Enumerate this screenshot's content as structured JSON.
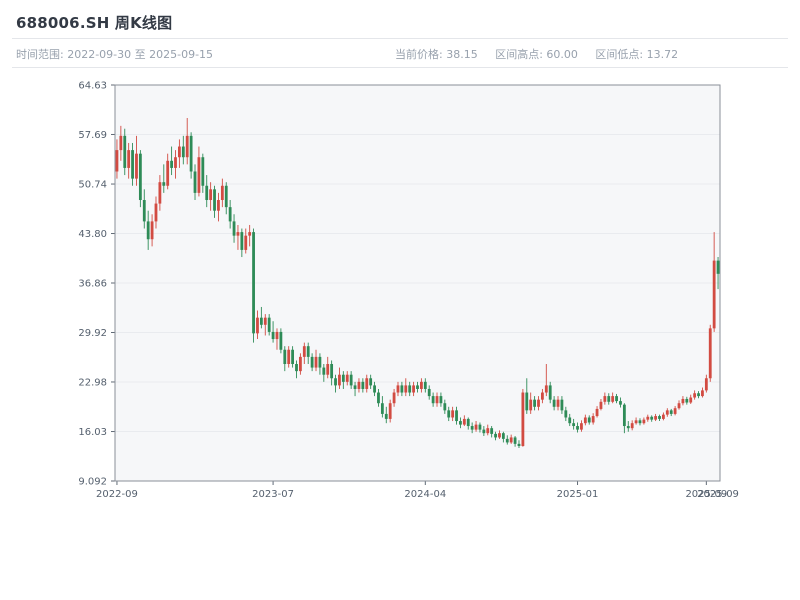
{
  "header": {
    "title": "688006.SH 周K线图",
    "time_range": "时间范围: 2022-09-30 至 2025-09-15",
    "current_price": "当前价格: 38.15",
    "range_high": "区间高点: 60.00",
    "range_low": "区间低点: 13.72"
  },
  "chart_data": {
    "type": "candlestick",
    "symbol": "688006.SH",
    "title": "688006.SH 周K线图",
    "frequency": "weekly",
    "current_price": 38.15,
    "range_high": 60.0,
    "range_low": 13.72,
    "y_min": 9.092,
    "y_max": 64.63,
    "y_ticks": [
      "64.63",
      "57.69",
      "50.74",
      "43.80",
      "36.86",
      "29.92",
      "22.98",
      "16.03",
      "9.092"
    ],
    "x_ticks": [
      {
        "label": "2022-09",
        "index": 0,
        "tick": true
      },
      {
        "label": "2023-07",
        "index": 40,
        "tick": true
      },
      {
        "label": "2024-04",
        "index": 79,
        "tick": true
      },
      {
        "label": "2025-01",
        "index": 118,
        "tick": true
      },
      {
        "label": "2025-09",
        "index": 151,
        "tick": true
      },
      {
        "label": "2025-09",
        "index": 154,
        "tick": false
      }
    ],
    "up_color": "#d24b42",
    "down_color": "#2e8b57",
    "plot_bg": "#f6f7f9",
    "grid": true,
    "legend": "none",
    "ohlc_order": [
      "date",
      "open",
      "high",
      "low",
      "close"
    ],
    "candles": [
      [
        "2022-09-30",
        52.5,
        57.0,
        51.5,
        55.5
      ],
      [
        "2022-10-07",
        55.5,
        58.9,
        54.0,
        57.5
      ],
      [
        "2022-10-14",
        57.5,
        58.5,
        52.0,
        53.0
      ],
      [
        "2022-10-21",
        53.0,
        56.5,
        51.5,
        55.5
      ],
      [
        "2022-10-28",
        55.5,
        56.5,
        50.5,
        51.5
      ],
      [
        "2022-11-04",
        51.5,
        57.5,
        50.5,
        55.0
      ],
      [
        "2022-11-11",
        55.0,
        55.5,
        47.5,
        48.5
      ],
      [
        "2022-11-18",
        48.5,
        50.0,
        44.5,
        45.5
      ],
      [
        "2022-11-25",
        45.5,
        47.0,
        41.5,
        43.0
      ],
      [
        "2022-12-02",
        43.0,
        46.5,
        42.0,
        45.5
      ],
      [
        "2022-12-09",
        45.5,
        49.0,
        44.5,
        48.0
      ],
      [
        "2022-12-16",
        48.0,
        52.0,
        47.0,
        51.0
      ],
      [
        "2022-12-23",
        51.0,
        53.5,
        49.5,
        50.5
      ],
      [
        "2022-12-30",
        50.5,
        55.0,
        50.0,
        54.0
      ],
      [
        "2023-01-06",
        54.0,
        56.0,
        52.0,
        53.0
      ],
      [
        "2023-01-13",
        53.0,
        55.5,
        51.5,
        54.5
      ],
      [
        "2023-01-20",
        54.5,
        57.0,
        53.0,
        56.0
      ],
      [
        "2023-01-27",
        56.0,
        57.5,
        53.5,
        54.5
      ],
      [
        "2023-02-03",
        54.5,
        60.0,
        53.5,
        57.5
      ],
      [
        "2023-02-10",
        57.5,
        58.0,
        51.5,
        52.5
      ],
      [
        "2023-02-17",
        52.5,
        53.5,
        48.5,
        49.5
      ],
      [
        "2023-02-24",
        49.5,
        56.0,
        49.0,
        54.5
      ],
      [
        "2023-03-03",
        54.5,
        55.0,
        49.5,
        50.5
      ],
      [
        "2023-03-10",
        50.5,
        52.0,
        47.5,
        48.5
      ],
      [
        "2023-03-17",
        48.5,
        51.0,
        47.0,
        50.0
      ],
      [
        "2023-03-24",
        50.0,
        50.5,
        46.0,
        47.0
      ],
      [
        "2023-03-31",
        47.0,
        49.5,
        45.5,
        48.5
      ],
      [
        "2023-04-07",
        48.5,
        51.5,
        47.5,
        50.5
      ],
      [
        "2023-04-14",
        50.5,
        51.0,
        46.5,
        47.5
      ],
      [
        "2023-04-21",
        47.5,
        48.5,
        44.5,
        45.5
      ],
      [
        "2023-04-28",
        45.5,
        46.5,
        42.5,
        43.5
      ],
      [
        "2023-05-05",
        43.5,
        45.0,
        41.5,
        44.0
      ],
      [
        "2023-05-12",
        44.0,
        44.5,
        40.5,
        41.5
      ],
      [
        "2023-05-19",
        41.5,
        44.5,
        41.0,
        43.5
      ],
      [
        "2023-05-26",
        43.5,
        45.0,
        42.0,
        44.0
      ],
      [
        "2023-06-02",
        44.0,
        44.5,
        28.5,
        29.8
      ],
      [
        "2023-06-09",
        29.8,
        33.0,
        29.0,
        32.0
      ],
      [
        "2023-06-16",
        32.0,
        33.5,
        30.5,
        31.0
      ],
      [
        "2023-06-23",
        31.0,
        32.5,
        29.5,
        32.0
      ],
      [
        "2023-06-30",
        32.0,
        32.5,
        29.5,
        30.0
      ],
      [
        "2023-07-07",
        30.0,
        31.5,
        28.5,
        29.0
      ],
      [
        "2023-07-14",
        29.0,
        30.5,
        27.5,
        30.0
      ],
      [
        "2023-07-21",
        30.0,
        30.5,
        27.0,
        27.5
      ],
      [
        "2023-07-28",
        27.5,
        28.0,
        24.5,
        25.5
      ],
      [
        "2023-08-04",
        25.5,
        28.0,
        25.0,
        27.5
      ],
      [
        "2023-08-11",
        27.5,
        28.0,
        25.0,
        25.5
      ],
      [
        "2023-08-18",
        25.5,
        26.0,
        23.5,
        24.5
      ],
      [
        "2023-08-25",
        24.5,
        27.0,
        24.0,
        26.5
      ],
      [
        "2023-09-01",
        26.5,
        28.5,
        25.5,
        28.0
      ],
      [
        "2023-09-08",
        28.0,
        28.5,
        25.5,
        26.5
      ],
      [
        "2023-09-15",
        26.5,
        27.0,
        24.5,
        25.0
      ],
      [
        "2023-09-22",
        25.0,
        27.5,
        24.5,
        26.5
      ],
      [
        "2023-09-29",
        26.5,
        27.0,
        24.0,
        25.0
      ],
      [
        "2023-10-06",
        25.0,
        25.5,
        23.0,
        24.0
      ],
      [
        "2023-10-13",
        24.0,
        26.5,
        23.5,
        25.5
      ],
      [
        "2023-10-20",
        25.5,
        26.0,
        22.5,
        23.5
      ],
      [
        "2023-10-27",
        23.5,
        24.0,
        21.5,
        22.5
      ],
      [
        "2023-11-03",
        22.5,
        25.0,
        22.0,
        24.0
      ],
      [
        "2023-11-10",
        24.0,
        24.5,
        22.0,
        23.0
      ],
      [
        "2023-11-17",
        23.0,
        24.5,
        22.5,
        24.0
      ],
      [
        "2023-11-24",
        24.0,
        24.5,
        22.0,
        22.5
      ],
      [
        "2023-12-01",
        22.5,
        23.0,
        21.0,
        22.0
      ],
      [
        "2023-12-08",
        22.0,
        23.5,
        21.5,
        23.0
      ],
      [
        "2023-12-15",
        23.0,
        23.5,
        21.5,
        22.0
      ],
      [
        "2023-12-22",
        22.0,
        24.0,
        21.5,
        23.5
      ],
      [
        "2023-12-29",
        23.5,
        24.0,
        22.0,
        22.5
      ],
      [
        "2024-01-05",
        22.5,
        23.0,
        21.0,
        21.5
      ],
      [
        "2024-01-12",
        21.5,
        22.0,
        19.5,
        20.0
      ],
      [
        "2024-01-19",
        20.0,
        21.0,
        18.0,
        18.5
      ],
      [
        "2024-01-26",
        18.5,
        19.5,
        17.2,
        17.8
      ],
      [
        "2024-02-02",
        17.8,
        20.5,
        17.3,
        20.0
      ],
      [
        "2024-02-09",
        20.0,
        22.0,
        19.5,
        21.5
      ],
      [
        "2024-02-16",
        21.5,
        23.0,
        21.0,
        22.5
      ],
      [
        "2024-02-23",
        22.5,
        23.0,
        21.0,
        21.5
      ],
      [
        "2024-03-01",
        21.5,
        23.5,
        21.0,
        22.5
      ],
      [
        "2024-03-08",
        22.5,
        23.0,
        21.0,
        21.5
      ],
      [
        "2024-03-15",
        21.5,
        23.0,
        21.0,
        22.5
      ],
      [
        "2024-03-22",
        22.5,
        23.0,
        21.5,
        22.0
      ],
      [
        "2024-03-29",
        22.0,
        23.5,
        21.5,
        23.0
      ],
      [
        "2024-04-05",
        23.0,
        23.5,
        21.5,
        22.0
      ],
      [
        "2024-04-12",
        22.0,
        22.5,
        20.5,
        21.0
      ],
      [
        "2024-04-19",
        21.0,
        21.5,
        19.5,
        20.0
      ],
      [
        "2024-04-26",
        20.0,
        21.5,
        19.5,
        21.0
      ],
      [
        "2024-05-03",
        21.0,
        21.5,
        19.5,
        20.0
      ],
      [
        "2024-05-10",
        20.0,
        20.5,
        18.5,
        19.0
      ],
      [
        "2024-05-17",
        19.0,
        19.5,
        17.5,
        18.0
      ],
      [
        "2024-05-24",
        18.0,
        19.5,
        17.5,
        19.0
      ],
      [
        "2024-05-31",
        19.0,
        19.5,
        17.0,
        17.5
      ],
      [
        "2024-06-07",
        17.5,
        18.0,
        16.5,
        17.0
      ],
      [
        "2024-06-14",
        17.0,
        18.3,
        16.8,
        17.8
      ],
      [
        "2024-06-21",
        17.8,
        18.0,
        16.3,
        16.8
      ],
      [
        "2024-06-28",
        16.8,
        17.3,
        15.8,
        16.3
      ],
      [
        "2024-07-05",
        16.3,
        17.5,
        16.0,
        17.0
      ],
      [
        "2024-07-12",
        17.0,
        17.3,
        15.9,
        16.3
      ],
      [
        "2024-07-19",
        16.3,
        16.8,
        15.4,
        15.8
      ],
      [
        "2024-07-26",
        15.8,
        17.0,
        15.5,
        16.5
      ],
      [
        "2024-08-02",
        16.5,
        16.8,
        15.2,
        15.7
      ],
      [
        "2024-08-09",
        15.7,
        16.0,
        14.8,
        15.2
      ],
      [
        "2024-08-16",
        15.2,
        16.2,
        15.0,
        15.8
      ],
      [
        "2024-08-23",
        15.8,
        16.0,
        14.5,
        15.0
      ],
      [
        "2024-08-30",
        15.0,
        15.5,
        14.2,
        14.5
      ],
      [
        "2024-09-06",
        14.5,
        15.6,
        14.3,
        15.2
      ],
      [
        "2024-09-13",
        15.2,
        15.4,
        13.9,
        14.3
      ],
      [
        "2024-09-20",
        14.3,
        14.8,
        13.72,
        14.0
      ],
      [
        "2024-09-27",
        14.0,
        22.0,
        13.9,
        21.5
      ],
      [
        "2024-10-04",
        21.5,
        23.5,
        18.5,
        19.0
      ],
      [
        "2024-10-11",
        19.0,
        21.5,
        18.5,
        20.5
      ],
      [
        "2024-10-18",
        20.5,
        21.0,
        19.0,
        19.5
      ],
      [
        "2024-10-25",
        19.5,
        21.0,
        19.0,
        20.5
      ],
      [
        "2024-11-01",
        20.5,
        22.0,
        20.0,
        21.5
      ],
      [
        "2024-11-08",
        21.5,
        25.5,
        21.0,
        22.5
      ],
      [
        "2024-11-15",
        22.5,
        23.0,
        20.0,
        20.5
      ],
      [
        "2024-11-22",
        20.5,
        21.0,
        19.0,
        19.5
      ],
      [
        "2024-11-29",
        19.5,
        21.0,
        19.0,
        20.5
      ],
      [
        "2024-12-06",
        20.5,
        21.0,
        18.5,
        19.0
      ],
      [
        "2024-12-13",
        19.0,
        19.5,
        17.5,
        18.0
      ],
      [
        "2024-12-20",
        18.0,
        18.5,
        16.8,
        17.2
      ],
      [
        "2024-12-27",
        17.2,
        17.8,
        16.3,
        16.8
      ],
      [
        "2025-01-03",
        16.8,
        17.3,
        15.9,
        16.3
      ],
      [
        "2025-01-10",
        16.3,
        17.6,
        16.0,
        17.2
      ],
      [
        "2025-01-17",
        17.2,
        18.4,
        16.9,
        18.0
      ],
      [
        "2025-01-24",
        18.0,
        18.3,
        17.0,
        17.3
      ],
      [
        "2025-01-31",
        17.3,
        18.6,
        17.0,
        18.2
      ],
      [
        "2025-02-07",
        18.2,
        19.6,
        18.0,
        19.2
      ],
      [
        "2025-02-14",
        19.2,
        20.6,
        19.0,
        20.2
      ],
      [
        "2025-02-21",
        20.2,
        21.5,
        19.8,
        21.0
      ],
      [
        "2025-02-28",
        21.0,
        21.4,
        19.8,
        20.2
      ],
      [
        "2025-03-07",
        20.2,
        21.5,
        20.0,
        21.0
      ],
      [
        "2025-03-14",
        21.0,
        21.3,
        20.0,
        20.3
      ],
      [
        "2025-03-21",
        20.3,
        20.8,
        19.4,
        19.8
      ],
      [
        "2025-03-28",
        19.8,
        20.0,
        15.8,
        16.8
      ],
      [
        "2025-04-04",
        16.8,
        17.5,
        16.0,
        16.5
      ],
      [
        "2025-04-11",
        16.5,
        17.6,
        16.2,
        17.2
      ],
      [
        "2025-04-18",
        17.2,
        18.0,
        17.0,
        17.6
      ],
      [
        "2025-04-25",
        17.6,
        17.9,
        16.9,
        17.2
      ],
      [
        "2025-05-02",
        17.2,
        18.0,
        17.0,
        17.7
      ],
      [
        "2025-05-09",
        17.7,
        18.4,
        17.4,
        18.1
      ],
      [
        "2025-05-16",
        18.1,
        18.3,
        17.4,
        17.7
      ],
      [
        "2025-05-23",
        17.7,
        18.5,
        17.5,
        18.2
      ],
      [
        "2025-05-30",
        18.2,
        18.4,
        17.5,
        17.8
      ],
      [
        "2025-06-06",
        17.8,
        18.7,
        17.6,
        18.4
      ],
      [
        "2025-06-13",
        18.4,
        19.3,
        18.1,
        19.0
      ],
      [
        "2025-06-20",
        19.0,
        19.2,
        18.2,
        18.5
      ],
      [
        "2025-06-27",
        18.5,
        19.6,
        18.3,
        19.3
      ],
      [
        "2025-07-04",
        19.3,
        20.4,
        19.1,
        20.0
      ],
      [
        "2025-07-11",
        20.0,
        21.0,
        19.7,
        20.6
      ],
      [
        "2025-07-18",
        20.6,
        20.9,
        19.8,
        20.1
      ],
      [
        "2025-07-25",
        20.1,
        21.2,
        19.9,
        20.8
      ],
      [
        "2025-08-01",
        20.8,
        21.8,
        20.5,
        21.4
      ],
      [
        "2025-08-08",
        21.4,
        21.7,
        20.7,
        21.0
      ],
      [
        "2025-08-15",
        21.0,
        22.2,
        20.8,
        21.8
      ],
      [
        "2025-08-22",
        21.8,
        24.0,
        21.5,
        23.5
      ],
      [
        "2025-08-29",
        23.5,
        31.0,
        23.0,
        30.5
      ],
      [
        "2025-09-05",
        30.5,
        44.0,
        30.0,
        40.0
      ],
      [
        "2025-09-15",
        40.0,
        40.5,
        36.0,
        38.15
      ]
    ]
  }
}
